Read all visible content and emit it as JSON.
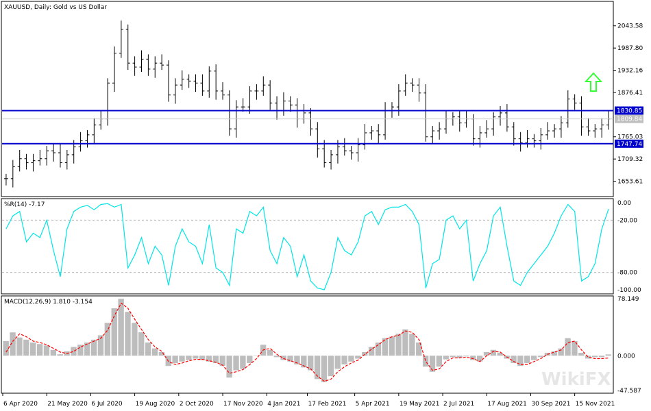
{
  "main_title": "XAUUSD, Daily:  Gold vs US Dollar",
  "wr_title": "%R(14) -7.17",
  "macd_title": "MACD(12,26,9) 1.810 -3.154",
  "watermark": "WikiFX",
  "colors": {
    "background": "#ffffff",
    "frame": "#000000",
    "bars": "#000000",
    "level_lines": "#0000cc",
    "level_label_bg": "#0000cc",
    "current_label_bg": "#c0c0c0",
    "wr_line": "#00e5e5",
    "macd_hist": "#bdbdbd",
    "macd_signal": "#ff0000",
    "arrow": "#33ff33",
    "grid_dash": "#b0b0b0"
  },
  "chart_data": [
    {
      "type": "ohlc",
      "title": "XAUUSD, Daily:  Gold vs US Dollar",
      "ylim": [
        1615,
        2105
      ],
      "y_ticks": [
        "2043.58",
        "1987.80",
        "1932.16",
        "1876.41",
        "1765.03",
        "1709.32",
        "1653.61"
      ],
      "level_labels": [
        "1830.85",
        "1747.74"
      ],
      "levels": [
        1830.85,
        1747.74
      ],
      "current_label": "1809.84",
      "current_price": 1809.84,
      "x_labels": [
        "6 Apr 2020",
        "21 May 2020",
        "6 Jul 2020",
        "19 Aug 2020",
        "2 Oct 2020",
        "17 Nov 2020",
        "4 Jan 2021",
        "17 Feb 2021",
        "5 Apr 2021",
        "19 May 2021",
        "2 Jul 2021",
        "17 Aug 2021",
        "30 Sep 2021",
        "15 Nov 2021"
      ],
      "dates": [
        "2020-04-06",
        "2020-04-13",
        "2020-04-20",
        "2020-04-27",
        "2020-05-04",
        "2020-05-11",
        "2020-05-18",
        "2020-05-25",
        "2020-06-01",
        "2020-06-08",
        "2020-06-15",
        "2020-06-22",
        "2020-06-29",
        "2020-07-06",
        "2020-07-13",
        "2020-07-20",
        "2020-07-27",
        "2020-08-03",
        "2020-08-10",
        "2020-08-17",
        "2020-08-24",
        "2020-08-31",
        "2020-09-07",
        "2020-09-14",
        "2020-09-21",
        "2020-09-28",
        "2020-10-05",
        "2020-10-12",
        "2020-10-19",
        "2020-10-26",
        "2020-11-02",
        "2020-11-09",
        "2020-11-16",
        "2020-11-23",
        "2020-11-30",
        "2020-12-07",
        "2020-12-14",
        "2020-12-21",
        "2020-12-28",
        "2021-01-04",
        "2021-01-11",
        "2021-01-18",
        "2021-01-25",
        "2021-02-01",
        "2021-02-08",
        "2021-02-15",
        "2021-02-22",
        "2021-03-01",
        "2021-03-08",
        "2021-03-15",
        "2021-03-22",
        "2021-03-29",
        "2021-04-05",
        "2021-04-12",
        "2021-04-19",
        "2021-04-26",
        "2021-05-03",
        "2021-05-10",
        "2021-05-17",
        "2021-05-24",
        "2021-05-31",
        "2021-06-07",
        "2021-06-14",
        "2021-06-21",
        "2021-06-28",
        "2021-07-05",
        "2021-07-12",
        "2021-07-19",
        "2021-07-26",
        "2021-08-02",
        "2021-08-09",
        "2021-08-16",
        "2021-08-23",
        "2021-08-30",
        "2021-09-06",
        "2021-09-13",
        "2021-09-20",
        "2021-09-27",
        "2021-10-04",
        "2021-10-11",
        "2021-10-18",
        "2021-10-25",
        "2021-11-01",
        "2021-11-08",
        "2021-11-15",
        "2021-11-22",
        "2021-11-29",
        "2021-12-06",
        "2021-12-13",
        "2021-12-20"
      ],
      "close": [
        1660,
        1690,
        1710,
        1700,
        1705,
        1710,
        1730,
        1725,
        1700,
        1720,
        1740,
        1755,
        1770,
        1795,
        1810,
        1900,
        1975,
        2035,
        1950,
        1940,
        1960,
        1935,
        1950,
        1945,
        1870,
        1895,
        1910,
        1905,
        1900,
        1880,
        1930,
        1880,
        1870,
        1785,
        1840,
        1840,
        1880,
        1880,
        1895,
        1850,
        1830,
        1855,
        1845,
        1810,
        1825,
        1785,
        1735,
        1700,
        1720,
        1740,
        1730,
        1725,
        1745,
        1775,
        1780,
        1770,
        1830,
        1840,
        1880,
        1900,
        1895,
        1875,
        1765,
        1780,
        1785,
        1810,
        1815,
        1800,
        1810,
        1760,
        1775,
        1785,
        1815,
        1825,
        1790,
        1760,
        1750,
        1760,
        1755,
        1770,
        1780,
        1785,
        1800,
        1860,
        1850,
        1790,
        1780,
        1785,
        1795,
        1810
      ]
    },
    {
      "type": "line",
      "title": "%R(14) -7.17",
      "ylim": [
        -100,
        0
      ],
      "y_ticks": [
        "0.00",
        "-20.00",
        "-80.00",
        "-100.00"
      ],
      "levels": [
        -20,
        -80
      ],
      "values": [
        -30,
        -15,
        -10,
        -45,
        -35,
        -40,
        -20,
        -55,
        -85,
        -30,
        -10,
        -5,
        -3,
        -8,
        -2,
        -1,
        -5,
        -2,
        -75,
        -60,
        -40,
        -70,
        -50,
        -60,
        -95,
        -50,
        -30,
        -45,
        -50,
        -70,
        -25,
        -75,
        -80,
        -95,
        -30,
        -35,
        -10,
        -15,
        -5,
        -55,
        -70,
        -40,
        -50,
        -85,
        -60,
        -90,
        -98,
        -100,
        -80,
        -40,
        -55,
        -60,
        -45,
        -15,
        -10,
        -25,
        -8,
        -5,
        -5,
        -2,
        -10,
        -25,
        -98,
        -70,
        -65,
        -20,
        -15,
        -30,
        -20,
        -90,
        -70,
        -55,
        -15,
        -5,
        -50,
        -90,
        -95,
        -80,
        -70,
        -60,
        -50,
        -35,
        -15,
        -2,
        -10,
        -90,
        -85,
        -70,
        -30,
        -7.17
      ]
    },
    {
      "type": "bar+line",
      "title": "MACD(12,26,9) 1.810 -3.154",
      "ylim": [
        -47.587,
        78.149
      ],
      "y_ticks": [
        "78.149",
        "0.000",
        "-47.587"
      ],
      "macd": [
        20,
        32,
        25,
        22,
        18,
        16,
        14,
        8,
        2,
        6,
        12,
        15,
        18,
        22,
        28,
        45,
        65,
        78,
        60,
        45,
        32,
        18,
        10,
        5,
        -14,
        -10,
        -8,
        -6,
        -4,
        -6,
        -8,
        -10,
        -14,
        -30,
        -20,
        -18,
        -10,
        0,
        15,
        8,
        -2,
        -6,
        -8,
        -12,
        -16,
        -20,
        -32,
        -36,
        -28,
        -18,
        -12,
        -8,
        -4,
        5,
        12,
        18,
        24,
        26,
        30,
        36,
        30,
        18,
        -15,
        -22,
        -15,
        -5,
        -2,
        -3,
        -1,
        -6,
        -8,
        5,
        8,
        4,
        -4,
        -10,
        -14,
        -10,
        -6,
        -2,
        4,
        6,
        10,
        24,
        20,
        4,
        -4,
        -2,
        -2,
        1.81
      ],
      "signal": [
        5,
        20,
        30,
        26,
        20,
        18,
        15,
        10,
        5,
        3,
        6,
        12,
        16,
        20,
        24,
        35,
        55,
        72,
        65,
        50,
        36,
        22,
        12,
        6,
        -8,
        -12,
        -10,
        -7,
        -5,
        -5,
        -7,
        -9,
        -13,
        -24,
        -22,
        -19,
        -12,
        -4,
        8,
        10,
        2,
        -4,
        -7,
        -10,
        -14,
        -18,
        -28,
        -35,
        -32,
        -22,
        -15,
        -10,
        -6,
        2,
        9,
        15,
        22,
        26,
        28,
        34,
        32,
        22,
        -8,
        -20,
        -18,
        -8,
        -3,
        -3,
        -2,
        -4,
        -8,
        0,
        6,
        5,
        -2,
        -8,
        -12,
        -12,
        -8,
        -4,
        2,
        5,
        8,
        18,
        20,
        8,
        -2,
        -4,
        -4,
        -3.154
      ]
    }
  ]
}
